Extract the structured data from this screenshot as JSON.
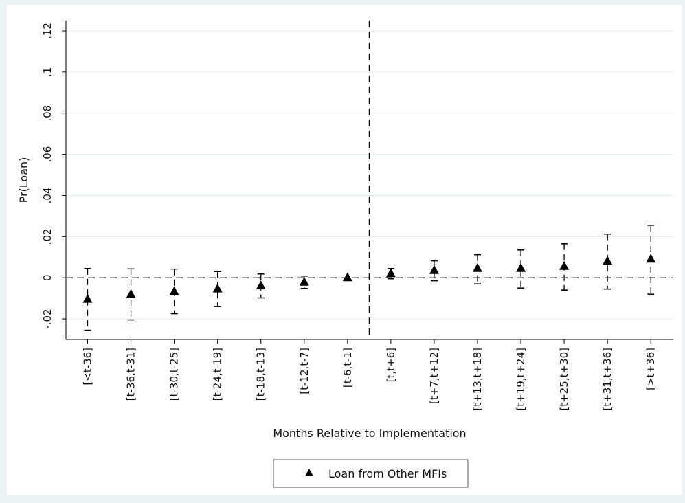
{
  "chart_data": {
    "type": "scatter",
    "title": "",
    "xlabel": "Months Relative to Implementation",
    "ylabel": "Pr(Loan)",
    "ylim": [
      -0.03,
      0.12
    ],
    "yticks": [
      {
        "value": -0.02,
        "label": "-.02"
      },
      {
        "value": 0,
        "label": "0"
      },
      {
        "value": 0.02,
        "label": ".02"
      },
      {
        "value": 0.04,
        "label": ".04"
      },
      {
        "value": 0.06,
        "label": ".06"
      },
      {
        "value": 0.08,
        "label": ".08"
      },
      {
        "value": 0.1,
        "label": ".1"
      },
      {
        "value": 0.12,
        "label": ".12"
      }
    ],
    "categories": [
      "[<t-36]",
      "[t-36,t-31]",
      "[t-30,t-25]",
      "[t-24,t-19]",
      "[t-18,t-13]",
      "[t-12,t-7]",
      "[t-6,t-1]",
      "[t,t+6]",
      "[t+7,t+12]",
      "[t+13,t+18]",
      "[t+19,t+24]",
      "[t+25,t+30]",
      "[t+31,t+36]",
      "[>t+36]"
    ],
    "series": [
      {
        "name": "Loan from Other MFIs",
        "marker": "triangle",
        "color": "#000000",
        "values": [
          -0.0105,
          -0.0082,
          -0.0068,
          -0.0055,
          -0.004,
          -0.0022,
          0.0,
          0.002,
          0.0035,
          0.0045,
          0.0045,
          0.0055,
          0.008,
          0.009
        ],
        "ci_low": [
          -0.0255,
          -0.0205,
          -0.0175,
          -0.014,
          -0.0098,
          -0.0052,
          0.0,
          -0.0005,
          -0.0015,
          -0.003,
          -0.005,
          -0.006,
          -0.0055,
          -0.008
        ],
        "ci_high": [
          0.0045,
          0.0043,
          0.0042,
          0.003,
          0.0018,
          0.0008,
          0.0,
          0.0045,
          0.0082,
          0.0112,
          0.0135,
          0.0165,
          0.0212,
          0.0255
        ]
      }
    ],
    "reference_lines": [
      {
        "axis": "y",
        "value": 0,
        "style": "dashed"
      },
      {
        "axis": "x",
        "between": [
          "[t-6,t-1]",
          "[t,t+6]"
        ],
        "style": "dashed"
      }
    ],
    "grid": true,
    "legend_position": "bottom-center",
    "plot_background": "#ffffff",
    "figure_background": "#eaf2f3"
  }
}
